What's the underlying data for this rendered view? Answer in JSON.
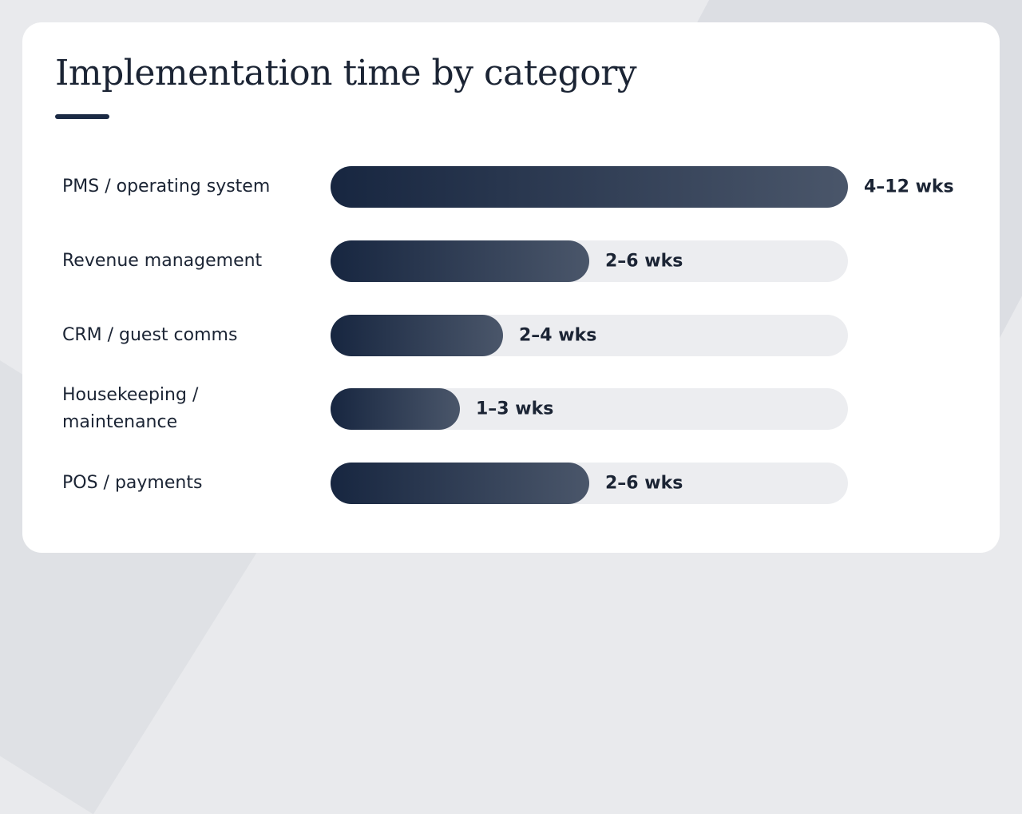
{
  "page": {
    "title": "Implementation time by category"
  },
  "colors": {
    "bar_start": "#172640",
    "bar_end": "#4a566a",
    "track": "#ecedf0",
    "text": "#1b2434"
  },
  "chart_data": {
    "type": "bar",
    "orientation": "horizontal",
    "title": "Implementation time by category",
    "xlabel": "",
    "ylabel": "",
    "unit": "weeks",
    "xlim": [
      0,
      12
    ],
    "categories": [
      "PMS / operating system",
      "Revenue management",
      "CRM / guest comms",
      "Housekeeping / maintenance",
      "POS / payments"
    ],
    "values": [
      12,
      6,
      4,
      3,
      6
    ],
    "ranges": [
      [
        4,
        12
      ],
      [
        2,
        6
      ],
      [
        2,
        4
      ],
      [
        1,
        3
      ],
      [
        2,
        6
      ]
    ],
    "value_labels": [
      "4–12 wks",
      "2–6 wks",
      "2–4 wks",
      "1–3 wks",
      "2–6 wks"
    ],
    "grid": false,
    "legend": "none"
  }
}
